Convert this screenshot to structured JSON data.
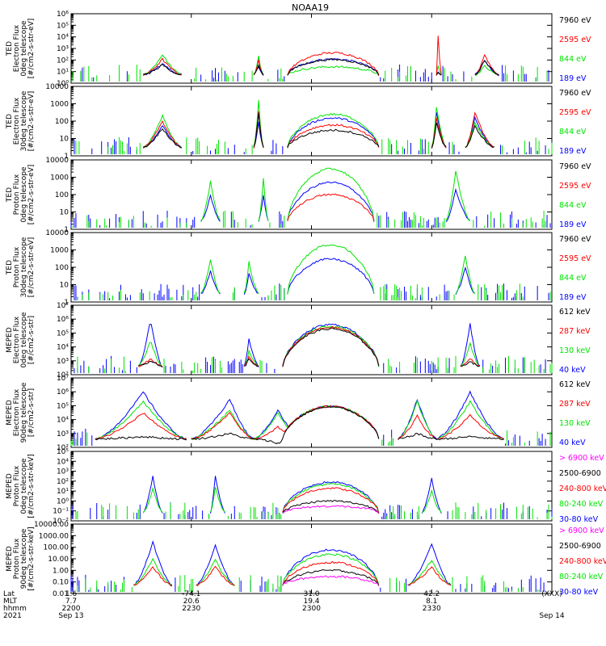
{
  "title": "NOAA19",
  "colors": {
    "black": "#000000",
    "red": "#ff0000",
    "green": "#00e400",
    "blue": "#0000ff",
    "magenta": "#ff00ff"
  },
  "chart_data": [
    {
      "type": "line",
      "panel": 1,
      "ylabel": [
        "TED",
        "Electron Flux",
        "0deg telescope",
        "[#/cm2-s-str-eV]"
      ],
      "log": true,
      "ylim": [
        1,
        1000000
      ],
      "yticks": [
        {
          "v": 1,
          "t": "10⁰"
        },
        {
          "v": 10,
          "t": "10¹"
        },
        {
          "v": 100,
          "t": "10²"
        },
        {
          "v": 1000,
          "t": "10³"
        },
        {
          "v": 10000,
          "t": "10⁴"
        },
        {
          "v": 100000,
          "t": "10⁵"
        },
        {
          "v": 1000000,
          "t": "10⁶"
        }
      ],
      "legend": [
        {
          "label": "7960 eV",
          "color": "black"
        },
        {
          "label": "2595 eV",
          "color": "red"
        },
        {
          "label": "844 eV",
          "color": "green"
        },
        {
          "label": "189 eV",
          "color": "blue"
        }
      ],
      "events": [
        {
          "x": [
            0.15,
            0.19,
            0.23
          ],
          "peak": [
            40,
            120,
            300,
            50
          ],
          "scatter": true
        },
        {
          "x": [
            0.38,
            0.39,
            0.4
          ],
          "peak": [
            40,
            100,
            200,
            30
          ]
        },
        {
          "x": [
            0.45,
            0.55,
            0.64
          ],
          "peak": [
            110,
            420,
            26,
            120
          ],
          "dome": true
        },
        {
          "x": [
            0.76,
            0.763,
            0.77
          ],
          "peak": [
            10,
            20000,
            30,
            10
          ]
        },
        {
          "x": [
            0.84,
            0.86,
            0.89
          ],
          "peak": [
            100,
            300,
            30,
            100
          ]
        }
      ]
    },
    {
      "type": "line",
      "panel": 2,
      "ylabel": [
        "TED",
        "Electron Flux",
        "30deg telescope",
        "[#/cm2-s-str-eV]"
      ],
      "log": true,
      "ylim": [
        1,
        10000
      ],
      "yticks": [
        {
          "v": 1,
          "t": "1"
        },
        {
          "v": 10,
          "t": "10"
        },
        {
          "v": 100,
          "t": "100"
        },
        {
          "v": 1000,
          "t": "1000"
        },
        {
          "v": 10000,
          "t": "10000"
        }
      ],
      "legend": [
        {
          "label": "7960 eV",
          "color": "black"
        },
        {
          "label": "2595 eV",
          "color": "red"
        },
        {
          "label": "844 eV",
          "color": "green"
        },
        {
          "label": "189 eV",
          "color": "blue"
        }
      ],
      "events": [
        {
          "x": [
            0.15,
            0.19,
            0.23
          ],
          "peak": [
            40,
            100,
            200,
            60
          ],
          "scatter": true
        },
        {
          "x": [
            0.38,
            0.39,
            0.4
          ],
          "peak": [
            300,
            400,
            1500,
            100
          ]
        },
        {
          "x": [
            0.45,
            0.55,
            0.64
          ],
          "peak": [
            30,
            60,
            250,
            150
          ],
          "dome": true
        },
        {
          "x": [
            0.75,
            0.76,
            0.78
          ],
          "peak": [
            80,
            150,
            700,
            300
          ]
        },
        {
          "x": [
            0.82,
            0.84,
            0.88
          ],
          "peak": [
            50,
            300,
            80,
            150
          ]
        }
      ]
    },
    {
      "type": "line",
      "panel": 3,
      "ylabel": [
        "TED",
        "Proton Flux",
        "0deg telescope",
        "[#/cm2-s-str-eV]"
      ],
      "log": true,
      "ylim": [
        1,
        10000
      ],
      "yticks": [
        {
          "v": 1,
          "t": "1"
        },
        {
          "v": 10,
          "t": "10"
        },
        {
          "v": 100,
          "t": "100"
        },
        {
          "v": 1000,
          "t": "1000"
        },
        {
          "v": 10000,
          "t": "10000"
        }
      ],
      "legend": [
        {
          "label": "7960 eV",
          "color": "black"
        },
        {
          "label": "2595 eV",
          "color": "red"
        },
        {
          "label": "844 eV",
          "color": "green"
        },
        {
          "label": "189 eV",
          "color": "blue"
        }
      ],
      "events": [
        {
          "x": [
            0.45,
            0.54,
            0.63
          ],
          "peak": [
            0,
            100,
            3000,
            500
          ],
          "dome": true
        },
        {
          "x": [
            0.27,
            0.29,
            0.31
          ],
          "peak": [
            0,
            0,
            600,
            100
          ]
        },
        {
          "x": [
            0.39,
            0.4,
            0.41
          ],
          "peak": [
            0,
            0,
            800,
            100
          ]
        },
        {
          "x": [
            0.78,
            0.8,
            0.83
          ],
          "peak": [
            0,
            0,
            2500,
            200
          ]
        }
      ]
    },
    {
      "type": "line",
      "panel": 4,
      "ylabel": [
        "TED",
        "Proton Flux",
        "30deg telescope",
        "[#/cm2-s-str-eV]"
      ],
      "log": true,
      "ylim": [
        1,
        10000
      ],
      "yticks": [
        {
          "v": 1,
          "t": "1"
        },
        {
          "v": 10,
          "t": "10"
        },
        {
          "v": 100,
          "t": "100"
        },
        {
          "v": 1000,
          "t": "1000"
        },
        {
          "v": 10000,
          "t": "10000"
        }
      ],
      "legend": [
        {
          "label": "7960 eV",
          "color": "black"
        },
        {
          "label": "2595 eV",
          "color": "red"
        },
        {
          "label": "844 eV",
          "color": "green"
        },
        {
          "label": "189 eV",
          "color": "blue"
        }
      ],
      "events": [
        {
          "x": [
            0.45,
            0.54,
            0.63
          ],
          "peak": [
            0,
            0,
            2000,
            300
          ],
          "dome": true
        },
        {
          "x": [
            0.27,
            0.29,
            0.31
          ],
          "peak": [
            0,
            0,
            300,
            60
          ]
        },
        {
          "x": [
            0.36,
            0.37,
            0.39
          ],
          "peak": [
            0,
            0,
            200,
            40
          ]
        },
        {
          "x": [
            0.8,
            0.82,
            0.84
          ],
          "peak": [
            0,
            0,
            500,
            100
          ]
        }
      ]
    },
    {
      "type": "line",
      "panel": 5,
      "ylabel": [
        "MEPED",
        "Electron Flux",
        "0deg telescope",
        "[#/cm2-s-str]"
      ],
      "log": true,
      "ylim": [
        100,
        10000000
      ],
      "yticks": [
        {
          "v": 100,
          "t": "10²"
        },
        {
          "v": 1000,
          "t": "10³"
        },
        {
          "v": 10000,
          "t": "10⁴"
        },
        {
          "v": 100000,
          "t": "10⁵"
        },
        {
          "v": 1000000,
          "t": "10⁶"
        },
        {
          "v": 10000000,
          "t": "10⁷"
        }
      ],
      "legend": [
        {
          "label": "612 keV",
          "color": "black"
        },
        {
          "label": "287 keV",
          "color": "red"
        },
        {
          "label": "130 keV",
          "color": "green"
        },
        {
          "label": "40 keV",
          "color": "blue"
        }
      ],
      "events": [
        {
          "x": [
            0.14,
            0.165,
            0.19
          ],
          "peak": [
            1000,
            1500,
            30000,
            1000000
          ]
        },
        {
          "x": [
            0.36,
            0.37,
            0.39
          ],
          "peak": [
            1500,
            2000,
            5000,
            40000
          ]
        },
        {
          "x": [
            0.44,
            0.54,
            0.64
          ],
          "peak": [
            200000,
            250000,
            300000,
            400000
          ],
          "dome": true
        },
        {
          "x": [
            0.81,
            0.83,
            0.85
          ],
          "peak": [
            1000,
            1500,
            20000,
            500000
          ]
        }
      ]
    },
    {
      "type": "line",
      "panel": 6,
      "ylabel": [
        "MEPED",
        "Electron Flux",
        "90deg telescope",
        "[#/cm2-s-str]"
      ],
      "log": true,
      "ylim": [
        100,
        10000000
      ],
      "yticks": [
        {
          "v": 100,
          "t": "10²"
        },
        {
          "v": 1000,
          "t": "10³"
        },
        {
          "v": 10000,
          "t": "10⁴"
        },
        {
          "v": 100000,
          "t": "10⁵"
        },
        {
          "v": 1000000,
          "t": "10⁶"
        },
        {
          "v": 10000000,
          "t": "10⁷"
        }
      ],
      "legend": [
        {
          "label": "612 keV",
          "color": "black"
        },
        {
          "label": "287 keV",
          "color": "red"
        },
        {
          "label": "130 keV",
          "color": "green"
        },
        {
          "label": "40 keV",
          "color": "blue"
        }
      ],
      "events": [
        {
          "x": [
            0.05,
            0.15,
            0.24
          ],
          "peak": [
            600,
            30000,
            200000,
            1000000
          ]
        },
        {
          "x": [
            0.25,
            0.33,
            0.38
          ],
          "peak": [
            1000,
            30000,
            50000,
            300000
          ]
        },
        {
          "x": [
            0.38,
            0.43,
            0.48
          ],
          "peak": [
            200,
            3000,
            30000,
            50000
          ]
        },
        {
          "x": [
            0.44,
            0.54,
            0.64
          ],
          "peak": [
            80000,
            90000,
            90000,
            90000
          ],
          "dome": true
        },
        {
          "x": [
            0.68,
            0.72,
            0.76
          ],
          "peak": [
            1000,
            20000,
            200000,
            300000
          ]
        },
        {
          "x": [
            0.76,
            0.83,
            0.9
          ],
          "peak": [
            600,
            20000,
            200000,
            1000000
          ]
        }
      ]
    },
    {
      "type": "line",
      "panel": 7,
      "ylabel": [
        "MEPED",
        "Proton Flux",
        "0deg telescope",
        "[#/cm2-s-str-keV]"
      ],
      "log": true,
      "ylim": [
        0.01,
        100000
      ],
      "yticks": [
        {
          "v": 0.01,
          "t": "10⁻²"
        },
        {
          "v": 0.1,
          "t": "10⁻¹"
        },
        {
          "v": 1,
          "t": "10⁰"
        },
        {
          "v": 10,
          "t": "10¹"
        },
        {
          "v": 100,
          "t": "10²"
        },
        {
          "v": 1000,
          "t": "10³"
        },
        {
          "v": 10000,
          "t": "10⁴"
        },
        {
          "v": 100000,
          "t": "10⁵"
        }
      ],
      "legend": [
        {
          "label": "> 6900 keV",
          "color": "magenta"
        },
        {
          "label": "2500-6900",
          "color": "black"
        },
        {
          "label": "240-800 keV",
          "color": "red"
        },
        {
          "label": "80-240 keV",
          "color": "green"
        },
        {
          "label": "30-80 keV",
          "color": "blue"
        }
      ],
      "events": [
        {
          "x": [
            0.15,
            0.17,
            0.19
          ],
          "peak": [
            0,
            0,
            0,
            20,
            300
          ]
        },
        {
          "x": [
            0.29,
            0.3,
            0.32
          ],
          "peak": [
            0,
            0,
            0,
            30,
            400
          ]
        },
        {
          "x": [
            0.44,
            0.54,
            0.64
          ],
          "peak": [
            0.3,
            1,
            20,
            50,
            80
          ],
          "dome": true
        },
        {
          "x": [
            0.73,
            0.75,
            0.77
          ],
          "peak": [
            0,
            0,
            0,
            10,
            200
          ]
        }
      ]
    },
    {
      "type": "line",
      "panel": 8,
      "ylabel": [
        "MEPED",
        "Proton Flux",
        "90deg telescope",
        "[#/cm2-s-str-keV]"
      ],
      "log": true,
      "ylim": [
        0.01,
        10000
      ],
      "yticks": [
        {
          "v": 0.01,
          "t": "0.01"
        },
        {
          "v": 0.1,
          "t": "0.10"
        },
        {
          "v": 1,
          "t": "1.00"
        },
        {
          "v": 10,
          "t": "10.00"
        },
        {
          "v": 100,
          "t": "100.00"
        },
        {
          "v": 1000,
          "t": "1000.00"
        },
        {
          "v": 10000,
          "t": "10000.00"
        }
      ],
      "legend": [
        {
          "label": "> 6900 keV",
          "color": "magenta"
        },
        {
          "label": "2500-6900",
          "color": "black"
        },
        {
          "label": "240-800 keV",
          "color": "red"
        },
        {
          "label": "80-240 keV",
          "color": "green"
        },
        {
          "label": "30-80 keV",
          "color": "blue"
        }
      ],
      "events": [
        {
          "x": [
            0.13,
            0.17,
            0.21
          ],
          "peak": [
            0,
            0,
            2,
            10,
            300
          ]
        },
        {
          "x": [
            0.26,
            0.3,
            0.34
          ],
          "peak": [
            0,
            0,
            2,
            8,
            150
          ]
        },
        {
          "x": [
            0.44,
            0.54,
            0.64
          ],
          "peak": [
            0.3,
            1,
            5,
            25,
            60
          ],
          "dome": true
        },
        {
          "x": [
            0.7,
            0.75,
            0.79
          ],
          "peak": [
            0,
            0,
            2,
            8,
            200
          ]
        }
      ]
    }
  ],
  "x_axis": {
    "row_labels": [
      "Lat",
      "MLT",
      "hhmm",
      "2021"
    ],
    "ticks": [
      {
        "pos": 0,
        "lat": "1.6",
        "mlt": "7.7",
        "hhmm": "2200",
        "date": "Sep 13"
      },
      {
        "pos": 0.25,
        "lat": "-74.1",
        "mlt": "20.6",
        "hhmm": "2230",
        "date": ""
      },
      {
        "pos": 0.5,
        "lat": "31.0",
        "mlt": "19.4",
        "hhmm": "2300",
        "date": ""
      },
      {
        "pos": 0.75,
        "lat": "42.2",
        "mlt": "8.1",
        "hhmm": "2330",
        "date": ""
      },
      {
        "pos": 1,
        "lat": "(XXX)",
        "mlt": "",
        "hhmm": "",
        "date": "Sep 14"
      }
    ]
  }
}
